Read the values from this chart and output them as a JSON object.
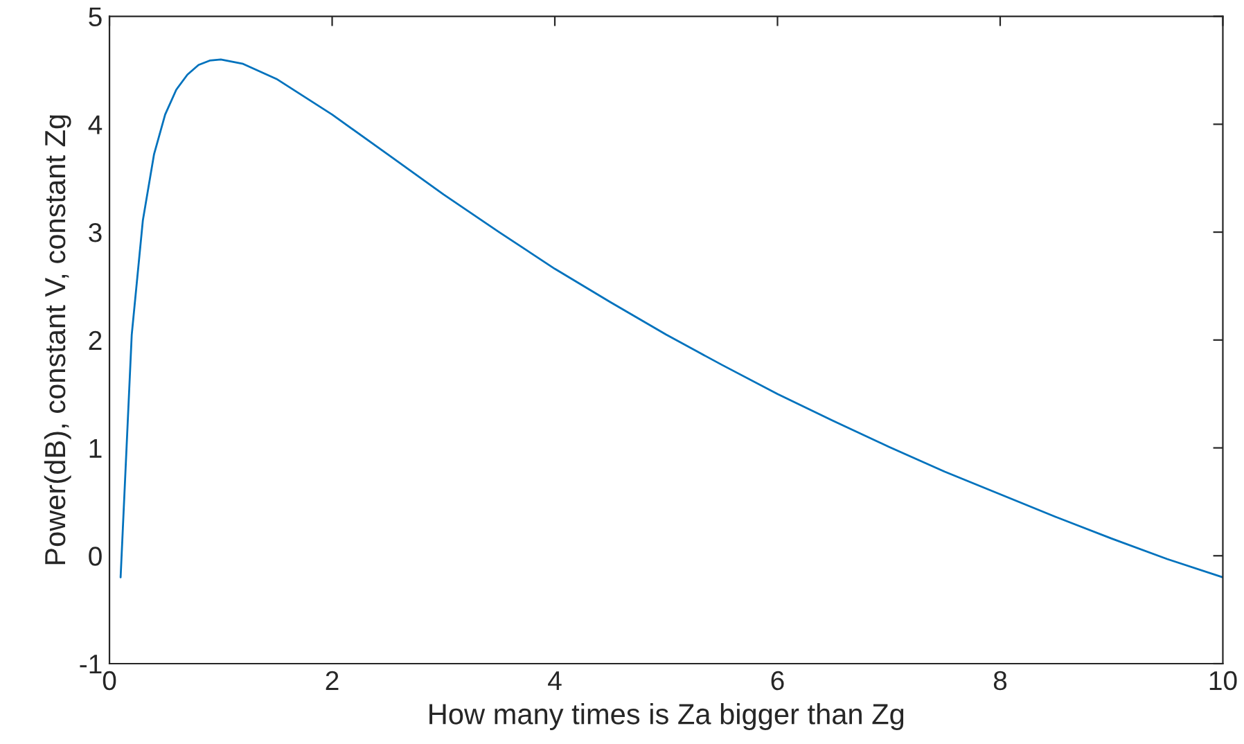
{
  "chart_data": {
    "type": "line",
    "xlabel": "How many times is Za bigger than Zg",
    "ylabel": "Power(dB), constant V, constant Zg",
    "x": [
      0.1,
      0.2,
      0.3,
      0.4,
      0.5,
      0.6,
      0.7,
      0.8,
      0.9,
      1.0,
      1.2,
      1.5,
      2,
      2.5,
      3,
      3.5,
      4,
      4.5,
      5,
      5.5,
      6,
      6.5,
      7,
      7.5,
      8,
      8.5,
      9,
      9.5,
      10
    ],
    "series": [
      {
        "color": "#0072bd",
        "values": [
          -0.2,
          2.05,
          3.11,
          3.72,
          4.09,
          4.32,
          4.46,
          4.55,
          4.59,
          4.6,
          4.56,
          4.42,
          4.09,
          3.72,
          3.35,
          3.0,
          2.66,
          2.35,
          2.05,
          1.77,
          1.5,
          1.25,
          1.01,
          0.78,
          0.57,
          0.36,
          0.16,
          -0.03,
          -0.2
        ]
      }
    ],
    "xlim": [
      0,
      10
    ],
    "ylim": [
      -1,
      5
    ],
    "xticks": [
      0,
      2,
      4,
      6,
      8,
      10
    ],
    "yticks": [
      -1,
      0,
      1,
      2,
      3,
      4,
      5
    ],
    "grid": false,
    "marker": "none",
    "line_style": "solid"
  }
}
